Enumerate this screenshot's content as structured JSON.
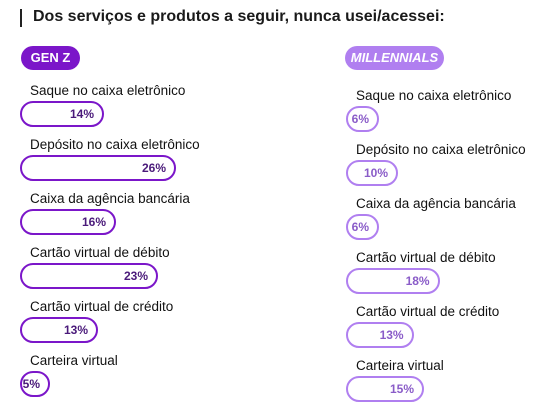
{
  "title": "Dos serviços e produtos a seguir, nunca usei/acessei:",
  "colors": {
    "genz": "#7b16c9",
    "millennials": "#b07ff0"
  },
  "groups": {
    "genz": {
      "label": "GEN Z",
      "items": [
        {
          "label": "Saque no  caixa eletrônico",
          "value_label": "14%"
        },
        {
          "label": "Depósito no caixa eletrônico",
          "value_label": "26%"
        },
        {
          "label": "Caixa da agência bancária",
          "value_label": "16%"
        },
        {
          "label": "Cartão virtual de débito",
          "value_label": "23%"
        },
        {
          "label": "Cartão virtual de crédito",
          "value_label": "13%"
        },
        {
          "label": "Carteira virtual",
          "value_label": "5%"
        }
      ]
    },
    "millennials": {
      "label": "MILLENNIALS",
      "items": [
        {
          "label": "Saque no caixa eletrônico",
          "value_label": "6%"
        },
        {
          "label": "Depósito no caixa eletrônico",
          "value_label": "10%"
        },
        {
          "label": "Caixa da agência bancária",
          "value_label": "6%"
        },
        {
          "label": "Cartão virtual de débito",
          "value_label": "18%"
        },
        {
          "label": "Cartão virtual de crédito",
          "value_label": "13%"
        },
        {
          "label": "Carteira virtual",
          "value_label": "15%"
        }
      ]
    }
  },
  "chart_data": {
    "type": "bar",
    "title": "Dos serviços e produtos a seguir, nunca usei/acessei:",
    "categories": [
      "Saque no caixa eletrônico",
      "Depósito no caixa eletrônico",
      "Caixa da agência bancária",
      "Cartão virtual de débito",
      "Cartão virtual de crédito",
      "Carteira virtual"
    ],
    "series": [
      {
        "name": "GEN Z",
        "values": [
          14,
          26,
          16,
          23,
          13,
          5
        ]
      },
      {
        "name": "MILLENNIALS",
        "values": [
          6,
          10,
          6,
          18,
          13,
          15
        ]
      }
    ],
    "unit": "%",
    "grid": false
  }
}
